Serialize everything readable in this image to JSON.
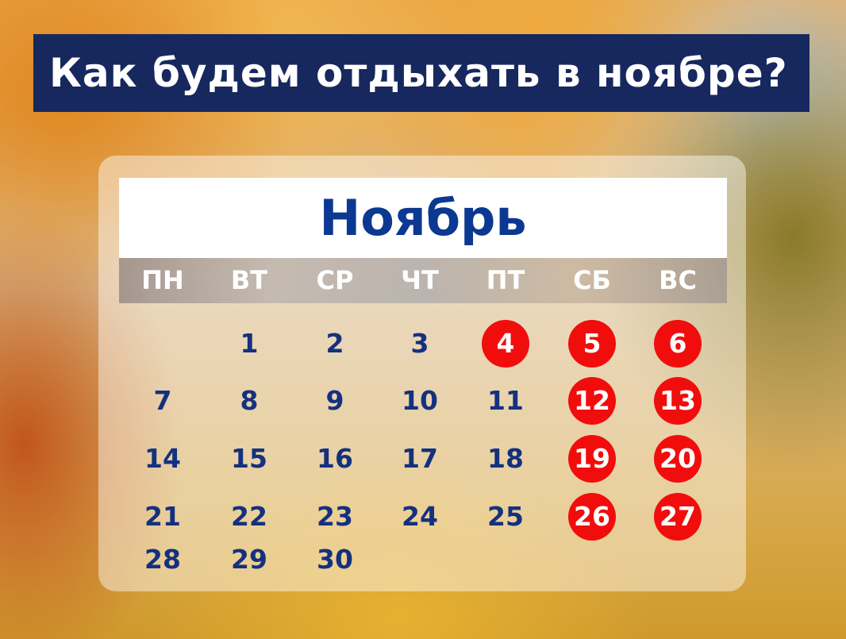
{
  "title": "Как будем отдыхать в ноябре?",
  "month": "Ноябрь",
  "weekdays": [
    "ПН",
    "ВТ",
    "СР",
    "ЧТ",
    "ПТ",
    "СБ",
    "ВС"
  ],
  "colors": {
    "banner": "#17285f",
    "text": "#14317f",
    "holiday": "#f20d0d"
  },
  "weeks": [
    [
      null,
      "1",
      "2",
      "3",
      "4",
      "5",
      "6"
    ],
    [
      "7",
      "8",
      "9",
      "10",
      "11",
      "12",
      "13"
    ],
    [
      "14",
      "15",
      "16",
      "17",
      "18",
      "19",
      "20"
    ],
    [
      "21",
      "22",
      "23",
      "24",
      "25",
      "26",
      "27"
    ],
    [
      "28",
      "29",
      "30",
      null,
      null,
      null,
      null
    ]
  ],
  "days_off": [
    "4",
    "5",
    "6",
    "12",
    "13",
    "19",
    "20",
    "26",
    "27"
  ]
}
